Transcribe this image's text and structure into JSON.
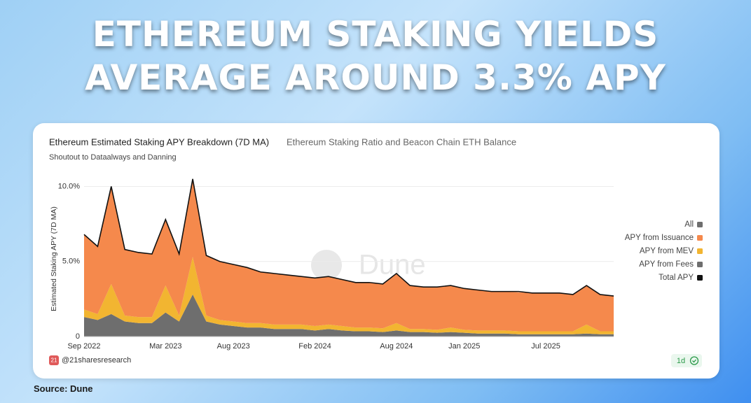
{
  "headline": [
    "ETHEREUM STAKING YIELDS",
    "AVERAGE AROUND 3.3% APY"
  ],
  "source": "Source: Dune",
  "chart_data": {
    "type": "area",
    "stacked": true,
    "title": "Ethereum Estimated Staking APY Breakdown (7D MA)",
    "tab": "Ethereum Staking Ratio and Beacon Chain ETH Balance",
    "subtitle": "Shoutout to Dataalways and Danning",
    "ylabel": "Estimated Staking APY (7D MA)",
    "watermark": "Dune",
    "logo_text": "21",
    "handle": "@21sharesresearch",
    "badge": "1d",
    "legend_all": {
      "label": "All",
      "color": "#6e6e6e"
    },
    "grid": true,
    "ylim": [
      0,
      11
    ],
    "yticks": [
      0,
      {
        "value": 5,
        "label": "5.0%"
      },
      {
        "value": 10,
        "label": "10.0%"
      }
    ],
    "categories": [
      "Sep 2022",
      null,
      null,
      null,
      null,
      null,
      "Mar 2023",
      null,
      null,
      null,
      null,
      "Aug 2023",
      null,
      null,
      null,
      null,
      null,
      "Feb 2024",
      null,
      null,
      null,
      null,
      null,
      "Aug 2024",
      null,
      null,
      null,
      null,
      "Jan 2025",
      null,
      null,
      null,
      null,
      null,
      "Jul 2025",
      null,
      null,
      null,
      null,
      null
    ],
    "series": [
      {
        "name": "APY from Issuance",
        "type": "area",
        "color": "#f5894c",
        "values": [
          5.0,
          4.5,
          6.5,
          4.4,
          4.3,
          4.2,
          4.4,
          4.1,
          5.2,
          4.0,
          3.9,
          3.8,
          3.7,
          3.4,
          3.4,
          3.3,
          3.2,
          3.2,
          3.2,
          3.1,
          3.0,
          3.0,
          2.95,
          3.3,
          2.9,
          2.8,
          2.85,
          2.8,
          2.75,
          2.7,
          2.6,
          2.6,
          2.6,
          2.55,
          2.55,
          2.55,
          2.45,
          2.6,
          2.45,
          2.35
        ]
      },
      {
        "name": "APY from MEV",
        "type": "area",
        "color": "#f2b531",
        "values": [
          0.5,
          0.4,
          2.0,
          0.4,
          0.4,
          0.4,
          1.8,
          0.4,
          2.5,
          0.4,
          0.3,
          0.3,
          0.3,
          0.3,
          0.3,
          0.3,
          0.3,
          0.3,
          0.3,
          0.3,
          0.25,
          0.25,
          0.25,
          0.5,
          0.2,
          0.2,
          0.2,
          0.3,
          0.2,
          0.2,
          0.2,
          0.2,
          0.2,
          0.2,
          0.2,
          0.2,
          0.2,
          0.6,
          0.2,
          0.2
        ]
      },
      {
        "name": "APY from Fees",
        "type": "area",
        "color": "#6e6e6e",
        "values": [
          1.3,
          1.1,
          1.5,
          1.0,
          0.9,
          0.9,
          1.6,
          1.0,
          2.8,
          1.0,
          0.8,
          0.7,
          0.6,
          0.6,
          0.5,
          0.5,
          0.5,
          0.4,
          0.5,
          0.4,
          0.35,
          0.35,
          0.3,
          0.4,
          0.3,
          0.3,
          0.25,
          0.3,
          0.25,
          0.2,
          0.2,
          0.2,
          0.15,
          0.15,
          0.15,
          0.15,
          0.15,
          0.2,
          0.15,
          0.15
        ]
      },
      {
        "name": "Total APY",
        "type": "line",
        "color": "#111111",
        "values": [
          6.8,
          6.0,
          10.0,
          5.8,
          5.6,
          5.5,
          7.8,
          5.5,
          10.5,
          5.4,
          5.0,
          4.8,
          4.6,
          4.3,
          4.2,
          4.1,
          4.0,
          3.9,
          4.0,
          3.8,
          3.6,
          3.6,
          3.5,
          4.2,
          3.4,
          3.3,
          3.3,
          3.4,
          3.2,
          3.1,
          3.0,
          3.0,
          3.0,
          2.9,
          2.9,
          2.9,
          2.8,
          3.4,
          2.8,
          2.7
        ]
      }
    ]
  }
}
